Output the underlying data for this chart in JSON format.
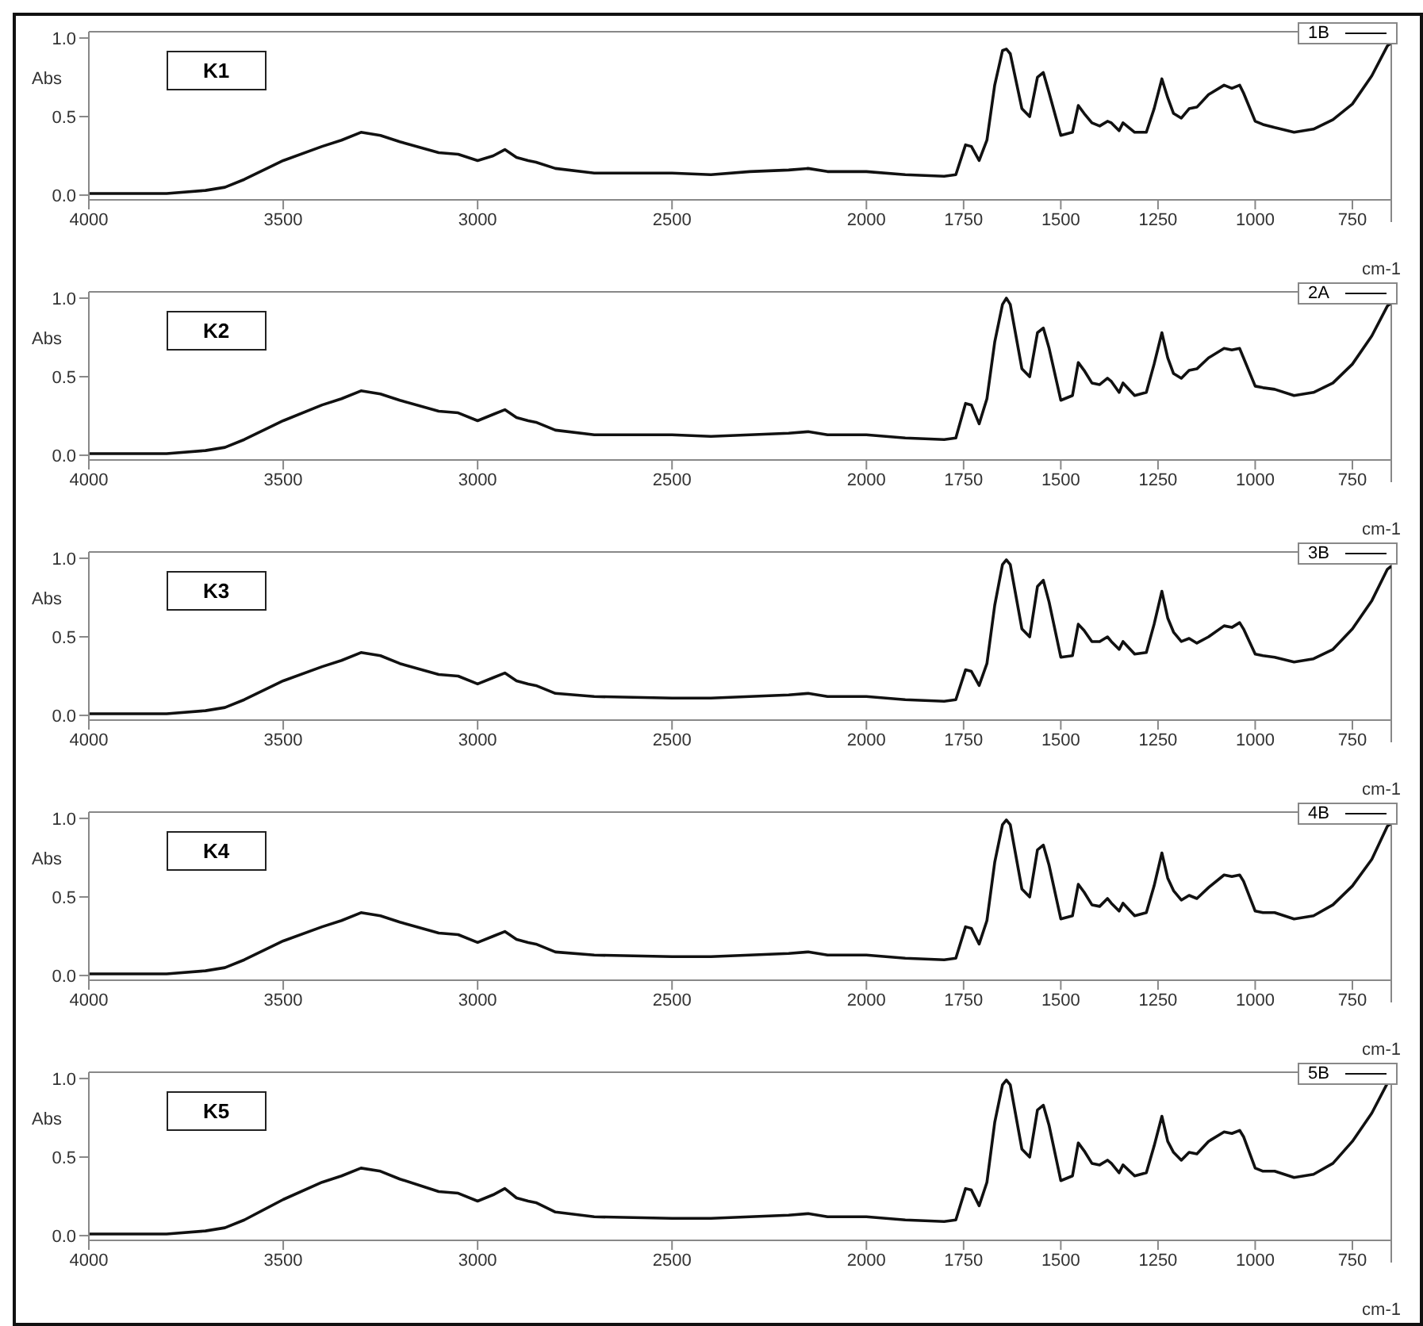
{
  "chart_data": [
    {
      "type": "line",
      "annotations": [
        "K1"
      ],
      "xlabel": "cm-1",
      "ylabel": "Abs",
      "xlim": [
        4000,
        650
      ],
      "xticks": [
        4000,
        3500,
        3000,
        2500,
        2000,
        1750,
        1500,
        1250,
        1000,
        750
      ],
      "ylim": [
        -0.03,
        1.04
      ],
      "yticks": [
        {
          "value": 0,
          "label": "0.0"
        },
        {
          "value": 0.5,
          "label": "0.5"
        },
        {
          "value": 1,
          "label": "1.0"
        }
      ],
      "legend": "top right",
      "grid": false,
      "x": [
        4000,
        3800,
        3700,
        3650,
        3600,
        3500,
        3400,
        3350,
        3300,
        3250,
        3200,
        3100,
        3050,
        3000,
        2960,
        2930,
        2900,
        2870,
        2850,
        2800,
        2700,
        2500,
        2400,
        2300,
        2200,
        2150,
        2100,
        2000,
        1900,
        1800,
        1770,
        1745,
        1730,
        1710,
        1690,
        1670,
        1650,
        1640,
        1630,
        1600,
        1580,
        1560,
        1545,
        1530,
        1500,
        1470,
        1455,
        1440,
        1420,
        1400,
        1380,
        1370,
        1350,
        1340,
        1310,
        1280,
        1260,
        1240,
        1225,
        1210,
        1190,
        1170,
        1150,
        1120,
        1080,
        1060,
        1040,
        1030,
        1000,
        980,
        950,
        900,
        850,
        800,
        750,
        700,
        660,
        650
      ],
      "series": [
        {
          "name": "1B",
          "color": "#111111",
          "values": [
            0.01,
            0.01,
            0.03,
            0.05,
            0.1,
            0.22,
            0.31,
            0.35,
            0.4,
            0.38,
            0.34,
            0.27,
            0.26,
            0.22,
            0.25,
            0.29,
            0.24,
            0.22,
            0.21,
            0.17,
            0.14,
            0.14,
            0.13,
            0.15,
            0.16,
            0.17,
            0.15,
            0.15,
            0.13,
            0.12,
            0.13,
            0.32,
            0.31,
            0.22,
            0.35,
            0.7,
            0.92,
            0.93,
            0.9,
            0.55,
            0.5,
            0.75,
            0.78,
            0.65,
            0.38,
            0.4,
            0.57,
            0.52,
            0.46,
            0.44,
            0.47,
            0.46,
            0.41,
            0.46,
            0.4,
            0.4,
            0.55,
            0.74,
            0.62,
            0.52,
            0.49,
            0.55,
            0.56,
            0.64,
            0.7,
            0.68,
            0.7,
            0.65,
            0.47,
            0.45,
            0.43,
            0.4,
            0.42,
            0.48,
            0.58,
            0.76,
            0.95,
            0.97
          ]
        }
      ]
    },
    {
      "type": "line",
      "annotations": [
        "K2"
      ],
      "xlabel": "cm-1",
      "ylabel": "Abs",
      "xlim": [
        4000,
        650
      ],
      "xticks": [
        4000,
        3500,
        3000,
        2500,
        2000,
        1750,
        1500,
        1250,
        1000,
        750
      ],
      "ylim": [
        -0.03,
        1.04
      ],
      "yticks": [
        {
          "value": 0,
          "label": "0.0"
        },
        {
          "value": 0.5,
          "label": "0.5"
        },
        {
          "value": 1,
          "label": "1.0"
        }
      ],
      "legend": "top right",
      "grid": false,
      "x": [
        4000,
        3800,
        3700,
        3650,
        3600,
        3500,
        3400,
        3350,
        3300,
        3250,
        3200,
        3100,
        3050,
        3000,
        2960,
        2930,
        2900,
        2870,
        2850,
        2800,
        2700,
        2500,
        2400,
        2300,
        2200,
        2150,
        2100,
        2000,
        1900,
        1800,
        1770,
        1745,
        1730,
        1710,
        1690,
        1670,
        1650,
        1640,
        1630,
        1600,
        1580,
        1560,
        1545,
        1530,
        1500,
        1470,
        1455,
        1440,
        1420,
        1400,
        1380,
        1370,
        1350,
        1340,
        1310,
        1280,
        1260,
        1240,
        1225,
        1210,
        1190,
        1170,
        1150,
        1120,
        1080,
        1060,
        1040,
        1030,
        1000,
        980,
        950,
        900,
        850,
        800,
        750,
        700,
        660,
        650
      ],
      "series": [
        {
          "name": "2A",
          "color": "#111111",
          "values": [
            0.01,
            0.01,
            0.03,
            0.05,
            0.1,
            0.22,
            0.32,
            0.36,
            0.41,
            0.39,
            0.35,
            0.28,
            0.27,
            0.22,
            0.26,
            0.29,
            0.24,
            0.22,
            0.21,
            0.16,
            0.13,
            0.13,
            0.12,
            0.13,
            0.14,
            0.15,
            0.13,
            0.13,
            0.11,
            0.1,
            0.11,
            0.33,
            0.32,
            0.2,
            0.36,
            0.72,
            0.96,
            1.0,
            0.96,
            0.55,
            0.5,
            0.78,
            0.81,
            0.68,
            0.35,
            0.38,
            0.59,
            0.54,
            0.46,
            0.45,
            0.49,
            0.47,
            0.4,
            0.46,
            0.38,
            0.4,
            0.58,
            0.78,
            0.62,
            0.52,
            0.49,
            0.54,
            0.55,
            0.62,
            0.68,
            0.67,
            0.68,
            0.62,
            0.44,
            0.43,
            0.42,
            0.38,
            0.4,
            0.46,
            0.58,
            0.76,
            0.95,
            0.97
          ]
        }
      ]
    },
    {
      "type": "line",
      "annotations": [
        "K3"
      ],
      "xlabel": "cm-1",
      "ylabel": "Abs",
      "xlim": [
        4000,
        650
      ],
      "xticks": [
        4000,
        3500,
        3000,
        2500,
        2000,
        1750,
        1500,
        1250,
        1000,
        750
      ],
      "ylim": [
        -0.03,
        1.04
      ],
      "yticks": [
        {
          "value": 0,
          "label": "0.0"
        },
        {
          "value": 0.5,
          "label": "0.5"
        },
        {
          "value": 1,
          "label": "1.0"
        }
      ],
      "legend": "top right",
      "grid": false,
      "x": [
        4000,
        3800,
        3700,
        3650,
        3600,
        3500,
        3400,
        3350,
        3300,
        3250,
        3200,
        3100,
        3050,
        3000,
        2960,
        2930,
        2900,
        2870,
        2850,
        2800,
        2700,
        2500,
        2400,
        2300,
        2200,
        2150,
        2100,
        2000,
        1900,
        1800,
        1770,
        1745,
        1730,
        1710,
        1690,
        1670,
        1650,
        1640,
        1630,
        1600,
        1580,
        1560,
        1545,
        1530,
        1500,
        1470,
        1455,
        1440,
        1420,
        1400,
        1380,
        1370,
        1350,
        1340,
        1310,
        1280,
        1260,
        1240,
        1225,
        1210,
        1190,
        1170,
        1150,
        1120,
        1080,
        1060,
        1040,
        1030,
        1000,
        980,
        950,
        900,
        850,
        800,
        750,
        700,
        660,
        650
      ],
      "series": [
        {
          "name": "3B",
          "color": "#111111",
          "values": [
            0.01,
            0.01,
            0.03,
            0.05,
            0.1,
            0.22,
            0.31,
            0.35,
            0.4,
            0.38,
            0.33,
            0.26,
            0.25,
            0.2,
            0.24,
            0.27,
            0.22,
            0.2,
            0.19,
            0.14,
            0.12,
            0.11,
            0.11,
            0.12,
            0.13,
            0.14,
            0.12,
            0.12,
            0.1,
            0.09,
            0.1,
            0.29,
            0.28,
            0.19,
            0.33,
            0.7,
            0.96,
            0.99,
            0.96,
            0.55,
            0.5,
            0.82,
            0.86,
            0.72,
            0.37,
            0.38,
            0.58,
            0.54,
            0.47,
            0.47,
            0.5,
            0.47,
            0.42,
            0.47,
            0.39,
            0.4,
            0.58,
            0.79,
            0.62,
            0.53,
            0.47,
            0.49,
            0.46,
            0.5,
            0.57,
            0.56,
            0.59,
            0.55,
            0.39,
            0.38,
            0.37,
            0.34,
            0.36,
            0.42,
            0.55,
            0.73,
            0.93,
            0.95
          ]
        }
      ]
    },
    {
      "type": "line",
      "annotations": [
        "K4"
      ],
      "xlabel": "cm-1",
      "ylabel": "Abs",
      "xlim": [
        4000,
        650
      ],
      "xticks": [
        4000,
        3500,
        3000,
        2500,
        2000,
        1750,
        1500,
        1250,
        1000,
        750
      ],
      "ylim": [
        -0.03,
        1.04
      ],
      "yticks": [
        {
          "value": 0,
          "label": "0.0"
        },
        {
          "value": 0.5,
          "label": "0.5"
        },
        {
          "value": 1,
          "label": "1.0"
        }
      ],
      "legend": "top right",
      "grid": false,
      "x": [
        4000,
        3800,
        3700,
        3650,
        3600,
        3500,
        3400,
        3350,
        3300,
        3250,
        3200,
        3100,
        3050,
        3000,
        2960,
        2930,
        2900,
        2870,
        2850,
        2800,
        2700,
        2500,
        2400,
        2300,
        2200,
        2150,
        2100,
        2000,
        1900,
        1800,
        1770,
        1745,
        1730,
        1710,
        1690,
        1670,
        1650,
        1640,
        1630,
        1600,
        1580,
        1560,
        1545,
        1530,
        1500,
        1470,
        1455,
        1440,
        1420,
        1400,
        1380,
        1370,
        1350,
        1340,
        1310,
        1280,
        1260,
        1240,
        1225,
        1210,
        1190,
        1170,
        1150,
        1120,
        1080,
        1060,
        1040,
        1030,
        1000,
        980,
        950,
        900,
        850,
        800,
        750,
        700,
        660,
        650
      ],
      "series": [
        {
          "name": "4B",
          "color": "#111111",
          "values": [
            0.01,
            0.01,
            0.03,
            0.05,
            0.1,
            0.22,
            0.31,
            0.35,
            0.4,
            0.38,
            0.34,
            0.27,
            0.26,
            0.21,
            0.25,
            0.28,
            0.23,
            0.21,
            0.2,
            0.15,
            0.13,
            0.12,
            0.12,
            0.13,
            0.14,
            0.15,
            0.13,
            0.13,
            0.11,
            0.1,
            0.11,
            0.31,
            0.3,
            0.2,
            0.35,
            0.72,
            0.96,
            0.99,
            0.96,
            0.55,
            0.5,
            0.8,
            0.83,
            0.7,
            0.36,
            0.38,
            0.58,
            0.53,
            0.45,
            0.44,
            0.49,
            0.46,
            0.41,
            0.46,
            0.38,
            0.4,
            0.57,
            0.78,
            0.62,
            0.54,
            0.48,
            0.51,
            0.49,
            0.56,
            0.64,
            0.63,
            0.64,
            0.6,
            0.41,
            0.4,
            0.4,
            0.36,
            0.38,
            0.45,
            0.57,
            0.74,
            0.95,
            0.97
          ]
        }
      ]
    },
    {
      "type": "line",
      "annotations": [
        "K5"
      ],
      "xlabel": "cm-1",
      "ylabel": "Abs",
      "xlim": [
        4000,
        650
      ],
      "xticks": [
        4000,
        3500,
        3000,
        2500,
        2000,
        1750,
        1500,
        1250,
        1000,
        750
      ],
      "ylim": [
        -0.03,
        1.04
      ],
      "yticks": [
        {
          "value": 0,
          "label": "0.0"
        },
        {
          "value": 0.5,
          "label": "0.5"
        },
        {
          "value": 1,
          "label": "1.0"
        }
      ],
      "legend": "top right",
      "grid": false,
      "x": [
        4000,
        3800,
        3700,
        3650,
        3600,
        3500,
        3400,
        3350,
        3300,
        3250,
        3200,
        3100,
        3050,
        3000,
        2960,
        2930,
        2900,
        2870,
        2850,
        2800,
        2700,
        2500,
        2400,
        2300,
        2200,
        2150,
        2100,
        2000,
        1900,
        1800,
        1770,
        1745,
        1730,
        1710,
        1690,
        1670,
        1650,
        1640,
        1630,
        1600,
        1580,
        1560,
        1545,
        1530,
        1500,
        1470,
        1455,
        1440,
        1420,
        1400,
        1380,
        1370,
        1350,
        1340,
        1310,
        1280,
        1260,
        1240,
        1225,
        1210,
        1190,
        1170,
        1150,
        1120,
        1080,
        1060,
        1040,
        1030,
        1000,
        980,
        950,
        900,
        850,
        800,
        750,
        700,
        660,
        650
      ],
      "series": [
        {
          "name": "5B",
          "color": "#111111",
          "values": [
            0.01,
            0.01,
            0.03,
            0.05,
            0.1,
            0.23,
            0.34,
            0.38,
            0.43,
            0.41,
            0.36,
            0.28,
            0.27,
            0.22,
            0.26,
            0.3,
            0.24,
            0.22,
            0.21,
            0.15,
            0.12,
            0.11,
            0.11,
            0.12,
            0.13,
            0.14,
            0.12,
            0.12,
            0.1,
            0.09,
            0.1,
            0.3,
            0.29,
            0.19,
            0.34,
            0.72,
            0.96,
            0.99,
            0.96,
            0.55,
            0.5,
            0.8,
            0.83,
            0.7,
            0.35,
            0.38,
            0.59,
            0.54,
            0.46,
            0.45,
            0.48,
            0.46,
            0.4,
            0.45,
            0.38,
            0.4,
            0.57,
            0.76,
            0.6,
            0.53,
            0.48,
            0.53,
            0.52,
            0.6,
            0.66,
            0.65,
            0.67,
            0.63,
            0.43,
            0.41,
            0.41,
            0.37,
            0.39,
            0.46,
            0.6,
            0.78,
            0.97,
            1.0
          ]
        }
      ]
    }
  ]
}
